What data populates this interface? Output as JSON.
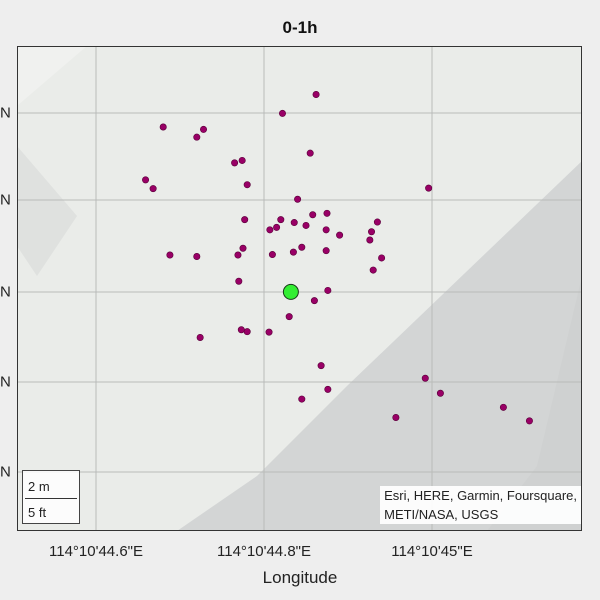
{
  "title": "0-1h",
  "xlabel": "Longitude",
  "x_ticks": [
    "114°10'44.6\"E",
    "114°10'44.8\"E",
    "114°10'45\"E"
  ],
  "y_ticks": [
    "N",
    "N",
    "N",
    "N",
    "N"
  ],
  "scalebar": {
    "metric": "2 m",
    "imperial": "5 ft"
  },
  "attribution": {
    "line1": "Esri, HERE, Garmin, Foursquare,",
    "line2": "METI/NASA, USGS"
  },
  "colors": {
    "points": "#990066",
    "center": "#33ee33",
    "land": "#e8ebe8",
    "water": "#d4d6d6"
  },
  "chart_data": {
    "type": "scatter",
    "center_point": {
      "lon_sec": 44.832,
      "lat_rel": 0.493
    },
    "points": [
      [
        44.68,
        0.833
      ],
      [
        44.822,
        0.861
      ],
      [
        44.862,
        0.9
      ],
      [
        44.72,
        0.812
      ],
      [
        44.728,
        0.828
      ],
      [
        44.765,
        0.759
      ],
      [
        44.774,
        0.764
      ],
      [
        44.659,
        0.724
      ],
      [
        44.668,
        0.706
      ],
      [
        44.78,
        0.714
      ],
      [
        44.875,
        0.655
      ],
      [
        44.84,
        0.684
      ],
      [
        44.855,
        0.779
      ],
      [
        44.996,
        0.707
      ],
      [
        44.858,
        0.652
      ],
      [
        44.777,
        0.642
      ],
      [
        44.807,
        0.621
      ],
      [
        44.82,
        0.642
      ],
      [
        44.836,
        0.636
      ],
      [
        44.85,
        0.63
      ],
      [
        44.874,
        0.621
      ],
      [
        44.815,
        0.626
      ],
      [
        44.89,
        0.61
      ],
      [
        44.935,
        0.637
      ],
      [
        44.928,
        0.617
      ],
      [
        44.926,
        0.6
      ],
      [
        44.688,
        0.569
      ],
      [
        44.72,
        0.566
      ],
      [
        44.769,
        0.569
      ],
      [
        44.775,
        0.583
      ],
      [
        44.81,
        0.57
      ],
      [
        44.835,
        0.575
      ],
      [
        44.845,
        0.585
      ],
      [
        44.874,
        0.578
      ],
      [
        44.94,
        0.563
      ],
      [
        44.93,
        0.538
      ],
      [
        44.876,
        0.496
      ],
      [
        44.86,
        0.475
      ],
      [
        44.77,
        0.515
      ],
      [
        44.83,
        0.442
      ],
      [
        44.773,
        0.415
      ],
      [
        44.78,
        0.411
      ],
      [
        44.806,
        0.41
      ],
      [
        44.724,
        0.399
      ],
      [
        44.868,
        0.341
      ],
      [
        44.992,
        0.315
      ],
      [
        44.876,
        0.292
      ],
      [
        44.845,
        0.272
      ],
      [
        45.01,
        0.284
      ],
      [
        44.957,
        0.234
      ],
      [
        45.085,
        0.255
      ],
      [
        45.116,
        0.227
      ]
    ]
  }
}
